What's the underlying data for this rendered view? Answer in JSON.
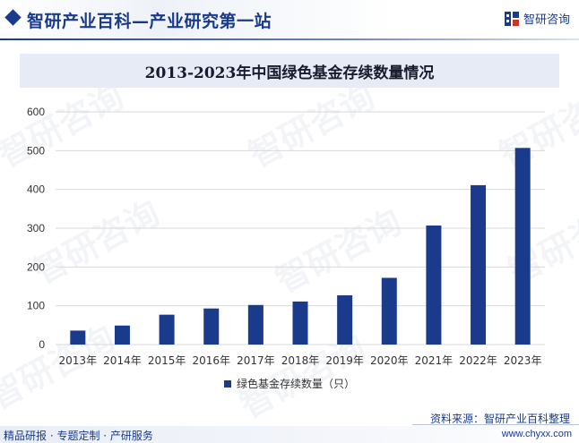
{
  "header": {
    "title": "智研产业百科—产业研究第一站",
    "brand": "智研咨询"
  },
  "footer": {
    "left": "精品研报 · 专题定制 · 产研服务",
    "source": "资料来源：智研产业百科整理",
    "url": "www.chyxx.com"
  },
  "watermark": "智研咨询",
  "colors": {
    "bar": "#1a3a8c",
    "accent": "#1a3a8c",
    "grid": "#d9d9d9"
  },
  "chart_data": {
    "type": "bar",
    "title": "2013-2023年中国绿色基金存续数量情况",
    "categories": [
      "2013年",
      "2014年",
      "2015年",
      "2016年",
      "2017年",
      "2018年",
      "2019年",
      "2020年",
      "2021年",
      "2022年",
      "2023年"
    ],
    "series": [
      {
        "name": "绿色基金存续数量（只）",
        "values": [
          36,
          49,
          77,
          93,
          102,
          111,
          127,
          172,
          307,
          411,
          507
        ]
      }
    ],
    "ylim": [
      0,
      600
    ],
    "yticks": [
      "0",
      "100",
      "200",
      "300",
      "400",
      "500",
      "600"
    ],
    "grid": true,
    "legend_position": "bottom-center"
  }
}
